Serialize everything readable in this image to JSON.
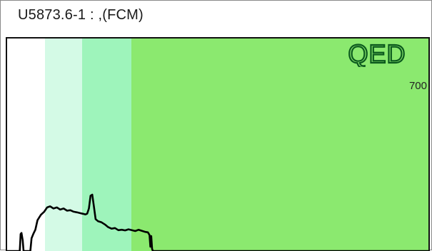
{
  "window": {
    "title": "U5873.6-1 : ,(FCM)"
  },
  "plot": {
    "logo_text": "QED",
    "scale_value": "700",
    "colors": {
      "background": "#ffffff",
      "band_1": "#d4fae6",
      "band_2": "#9ef4bb",
      "band_3": "#8be96f",
      "trace": "#000000",
      "logo": "#0c5a1e"
    },
    "trace_points": [
      [
        0.0,
        0.0
      ],
      [
        0.03,
        0.0
      ],
      [
        0.032,
        0.08
      ],
      [
        0.034,
        0.085
      ],
      [
        0.037,
        0.05
      ],
      [
        0.039,
        0.0
      ],
      [
        0.055,
        0.0
      ],
      [
        0.058,
        0.06
      ],
      [
        0.062,
        0.08
      ],
      [
        0.067,
        0.1
      ],
      [
        0.072,
        0.145
      ],
      [
        0.08,
        0.17
      ],
      [
        0.088,
        0.185
      ],
      [
        0.095,
        0.205
      ],
      [
        0.102,
        0.21
      ],
      [
        0.11,
        0.2
      ],
      [
        0.118,
        0.205
      ],
      [
        0.126,
        0.195
      ],
      [
        0.134,
        0.2
      ],
      [
        0.142,
        0.19
      ],
      [
        0.15,
        0.192
      ],
      [
        0.158,
        0.185
      ],
      [
        0.166,
        0.182
      ],
      [
        0.174,
        0.178
      ],
      [
        0.18,
        0.175
      ],
      [
        0.186,
        0.172
      ],
      [
        0.19,
        0.176
      ],
      [
        0.194,
        0.2
      ],
      [
        0.198,
        0.26
      ],
      [
        0.202,
        0.265
      ],
      [
        0.206,
        0.21
      ],
      [
        0.21,
        0.15
      ],
      [
        0.216,
        0.14
      ],
      [
        0.224,
        0.135
      ],
      [
        0.232,
        0.125
      ],
      [
        0.24,
        0.112
      ],
      [
        0.248,
        0.105
      ],
      [
        0.256,
        0.108
      ],
      [
        0.264,
        0.098
      ],
      [
        0.272,
        0.1
      ],
      [
        0.28,
        0.097
      ],
      [
        0.288,
        0.102
      ],
      [
        0.296,
        0.098
      ],
      [
        0.304,
        0.094
      ],
      [
        0.312,
        0.1
      ],
      [
        0.32,
        0.095
      ],
      [
        0.328,
        0.09
      ],
      [
        0.334,
        0.088
      ],
      [
        0.338,
        0.075
      ],
      [
        0.34,
        0.02
      ],
      [
        0.342,
        0.07
      ],
      [
        0.344,
        0.01
      ],
      [
        0.346,
        0.0
      ],
      [
        1.0,
        0.0
      ]
    ]
  }
}
